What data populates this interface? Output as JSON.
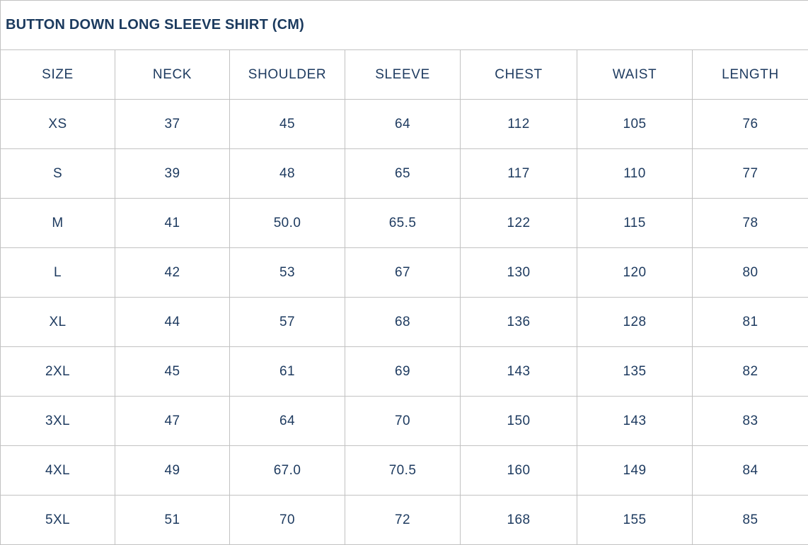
{
  "page": {
    "title": "BUTTON DOWN LONG SLEEVE SHIRT (CM)"
  },
  "chart_data": {
    "type": "table",
    "title": "BUTTON DOWN LONG SLEEVE SHIRT (CM)",
    "unit": "CM",
    "columns": [
      "SIZE",
      "NECK",
      "SHOULDER",
      "SLEEVE",
      "CHEST",
      "WAIST",
      "LENGTH"
    ],
    "rows": [
      [
        "XS",
        "37",
        "45",
        "64",
        "112",
        "105",
        "76"
      ],
      [
        "S",
        "39",
        "48",
        "65",
        "117",
        "110",
        "77"
      ],
      [
        "M",
        "41",
        "50.0",
        "65.5",
        "122",
        "115",
        "78"
      ],
      [
        "L",
        "42",
        "53",
        "67",
        "130",
        "120",
        "80"
      ],
      [
        "XL",
        "44",
        "57",
        "68",
        "136",
        "128",
        "81"
      ],
      [
        "2XL",
        "45",
        "61",
        "69",
        "143",
        "135",
        "82"
      ],
      [
        "3XL",
        "47",
        "64",
        "70",
        "150",
        "143",
        "83"
      ],
      [
        "4XL",
        "49",
        "67.0",
        "70.5",
        "160",
        "149",
        "84"
      ],
      [
        "5XL",
        "51",
        "70",
        "72",
        "168",
        "155",
        "85"
      ]
    ]
  },
  "colors": {
    "text": "#1d3a5f",
    "title_text": "#1b3a5e",
    "grid": "#c2c2c2",
    "background": "#ffffff"
  }
}
